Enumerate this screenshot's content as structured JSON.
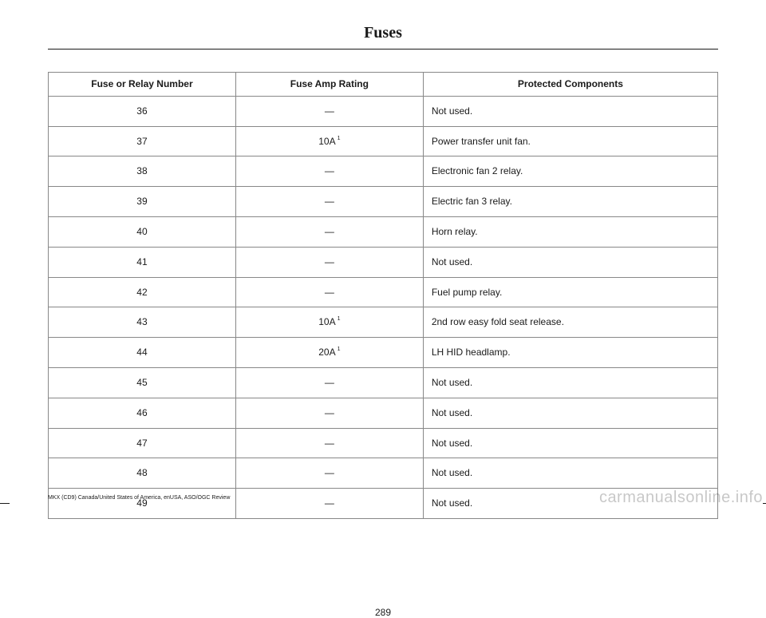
{
  "title": "Fuses",
  "table": {
    "columns": [
      "Fuse or Relay Number",
      "Fuse Amp Rating",
      "Protected Components"
    ],
    "col_widths_pct": [
      28,
      28,
      44
    ],
    "rows": [
      {
        "num": "36",
        "amp": "—",
        "sup": "",
        "comp": "Not used."
      },
      {
        "num": "37",
        "amp": "10A",
        "sup": "1",
        "comp": "Power transfer unit fan."
      },
      {
        "num": "38",
        "amp": "—",
        "sup": "",
        "comp": "Electronic fan 2 relay."
      },
      {
        "num": "39",
        "amp": "—",
        "sup": "",
        "comp": "Electric fan 3 relay."
      },
      {
        "num": "40",
        "amp": "—",
        "sup": "",
        "comp": "Horn relay."
      },
      {
        "num": "41",
        "amp": "—",
        "sup": "",
        "comp": "Not used."
      },
      {
        "num": "42",
        "amp": "—",
        "sup": "",
        "comp": "Fuel pump relay."
      },
      {
        "num": "43",
        "amp": "10A",
        "sup": "1",
        "comp": "2nd row easy fold seat release."
      },
      {
        "num": "44",
        "amp": "20A",
        "sup": "1",
        "comp": "LH HID headlamp."
      },
      {
        "num": "45",
        "amp": "—",
        "sup": "",
        "comp": "Not used."
      },
      {
        "num": "46",
        "amp": "—",
        "sup": "",
        "comp": "Not used."
      },
      {
        "num": "47",
        "amp": "—",
        "sup": "",
        "comp": "Not used."
      },
      {
        "num": "48",
        "amp": "—",
        "sup": "",
        "comp": "Not used."
      },
      {
        "num": "49",
        "amp": "—",
        "sup": "",
        "comp": "Not used."
      }
    ],
    "border_color": "#888888",
    "header_fontsize": 12,
    "cell_fontsize": 12
  },
  "pagenum": "289",
  "footer": "MKX (CD9) Canada/United States of America, enUSA, ASO/OGC Review",
  "watermark": "carmanualsonline.info",
  "colors": {
    "text": "#1a1a1a",
    "background": "#ffffff",
    "watermark": "rgba(0,0,0,0.22)"
  }
}
